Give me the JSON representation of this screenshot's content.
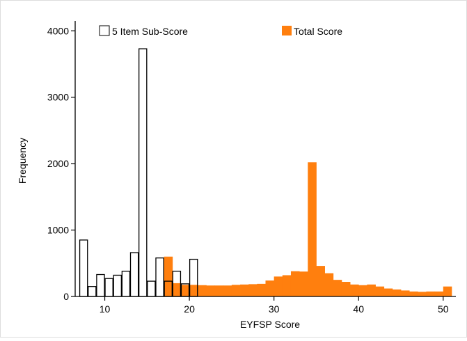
{
  "chart_data": {
    "type": "bar",
    "xlabel": "EYFSP Score",
    "ylabel": "Frequency",
    "xlim": [
      6.5,
      51.5
    ],
    "ylim": [
      0,
      4150
    ],
    "xticks": [
      10,
      20,
      30,
      40,
      50
    ],
    "yticks": [
      0,
      1000,
      2000,
      3000,
      4000
    ],
    "grid": false,
    "legend_position": "top",
    "series": [
      {
        "name": "5 Item Sub-Score",
        "style": "outline",
        "color": "#000000",
        "fill": "#ffffff",
        "bins": [
          {
            "start": 7,
            "end": 8,
            "value": 850
          },
          {
            "start": 8,
            "end": 9,
            "value": 150
          },
          {
            "start": 9,
            "end": 10,
            "value": 330
          },
          {
            "start": 10,
            "end": 11,
            "value": 270
          },
          {
            "start": 11,
            "end": 12,
            "value": 320
          },
          {
            "start": 12,
            "end": 13,
            "value": 380
          },
          {
            "start": 13,
            "end": 14,
            "value": 660
          },
          {
            "start": 14,
            "end": 15,
            "value": 3730
          },
          {
            "start": 15,
            "end": 16,
            "value": 230
          },
          {
            "start": 16,
            "end": 17,
            "value": 580
          },
          {
            "start": 17,
            "end": 18,
            "value": 230
          },
          {
            "start": 18,
            "end": 19,
            "value": 380
          },
          {
            "start": 19,
            "end": 20,
            "value": 190
          },
          {
            "start": 20,
            "end": 21,
            "value": 560
          }
        ]
      },
      {
        "name": "Total Score",
        "style": "filled",
        "color": "#ff7f0e",
        "bins": [
          {
            "start": 17,
            "end": 18,
            "value": 600
          },
          {
            "start": 18,
            "end": 19,
            "value": 200
          },
          {
            "start": 19,
            "end": 20,
            "value": 175
          },
          {
            "start": 20,
            "end": 21,
            "value": 175
          },
          {
            "start": 21,
            "end": 22,
            "value": 170
          },
          {
            "start": 22,
            "end": 23,
            "value": 165
          },
          {
            "start": 23,
            "end": 24,
            "value": 165
          },
          {
            "start": 24,
            "end": 25,
            "value": 165
          },
          {
            "start": 25,
            "end": 26,
            "value": 175
          },
          {
            "start": 26,
            "end": 27,
            "value": 180
          },
          {
            "start": 27,
            "end": 28,
            "value": 185
          },
          {
            "start": 28,
            "end": 29,
            "value": 190
          },
          {
            "start": 29,
            "end": 30,
            "value": 240
          },
          {
            "start": 30,
            "end": 31,
            "value": 300
          },
          {
            "start": 31,
            "end": 32,
            "value": 320
          },
          {
            "start": 32,
            "end": 33,
            "value": 380
          },
          {
            "start": 33,
            "end": 34,
            "value": 375
          },
          {
            "start": 34,
            "end": 35,
            "value": 2020
          },
          {
            "start": 35,
            "end": 36,
            "value": 460
          },
          {
            "start": 36,
            "end": 37,
            "value": 350
          },
          {
            "start": 37,
            "end": 38,
            "value": 250
          },
          {
            "start": 38,
            "end": 39,
            "value": 220
          },
          {
            "start": 39,
            "end": 40,
            "value": 180
          },
          {
            "start": 40,
            "end": 41,
            "value": 170
          },
          {
            "start": 41,
            "end": 42,
            "value": 180
          },
          {
            "start": 42,
            "end": 43,
            "value": 150
          },
          {
            "start": 43,
            "end": 44,
            "value": 120
          },
          {
            "start": 44,
            "end": 45,
            "value": 105
          },
          {
            "start": 45,
            "end": 46,
            "value": 90
          },
          {
            "start": 46,
            "end": 47,
            "value": 75
          },
          {
            "start": 47,
            "end": 48,
            "value": 70
          },
          {
            "start": 48,
            "end": 49,
            "value": 75
          },
          {
            "start": 49,
            "end": 50,
            "value": 75
          },
          {
            "start": 50,
            "end": 51,
            "value": 150
          }
        ]
      }
    ]
  }
}
